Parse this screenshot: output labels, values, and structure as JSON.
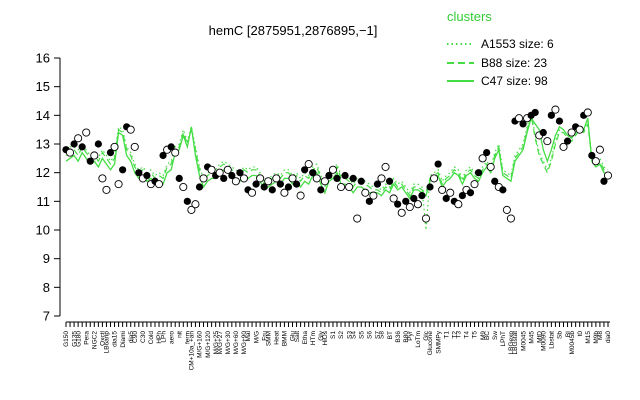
{
  "chart_data": {
    "type": "line",
    "title": "hemC [2875951,2876895,−1]",
    "xlabel": "",
    "ylabel": "",
    "ylim": [
      7,
      16
    ],
    "yticks": [
      7,
      8,
      9,
      10,
      11,
      12,
      13,
      14,
      15,
      16
    ],
    "n_conditions": 135,
    "x_tick_labels": [
      "G150",
      "G135",
      "G180",
      "Pera",
      "NGC2",
      "Oxctl",
      "LB6anp",
      "dia15",
      "Diami",
      "dia5",
      "C90",
      "C30",
      "Cold",
      "HPh",
      "LPh",
      "aero",
      "nit",
      "ferm",
      "CM+10a_+an",
      "M/G+160",
      "M/G+120",
      "M/G+25",
      "M/G+27",
      "M/G+30",
      "M/G+60",
      "M/G+90",
      "Mal",
      "M/G",
      "Fru",
      "SMM",
      "Heat",
      "BMM",
      "Glu",
      "Salt",
      "Etha",
      "HTm",
      "Gly",
      "HiOs",
      "S1",
      "S2",
      "S3",
      "S4",
      "S5",
      "S6",
      "S7",
      "S8",
      "BT",
      "B36",
      "B80",
      "Pyr",
      "LoTm",
      "Glc",
      "Glucone",
      "SMMPy",
      "T1",
      "T2",
      "T3",
      "T4",
      "T5",
      "M9",
      "BC",
      "Sw",
      "LPhT",
      "LBGexp",
      "LBGstat",
      "M0045",
      "M45",
      "MtD",
      "M0090",
      "Lbstat",
      "Sb",
      "BI",
      "M0045b",
      "t0",
      "M15",
      "M9b",
      "M8",
      "dia0"
    ],
    "clusters": [
      {
        "name": "A1553 size: 6",
        "style": "dotted"
      },
      {
        "name": "B88 size: 23",
        "style": "dashed"
      },
      {
        "name": "C47 size: 98",
        "style": "solid"
      }
    ],
    "series": [
      {
        "name": "C47 size: 98",
        "values": [
          12.4,
          12.5,
          12.6,
          12.4,
          12.7,
          12.5,
          12.3,
          12.4,
          12.2,
          12.5,
          12.3,
          12.1,
          12.3,
          13.4,
          13.3,
          12.6,
          12.4,
          12.0,
          11.8,
          11.9,
          11.7,
          11.8,
          11.6,
          11.7,
          11.6,
          12.0,
          12.1,
          12.7,
          12.8,
          13.3,
          12.9,
          13.6,
          12.6,
          11.9,
          11.5,
          11.7,
          11.8,
          11.8,
          12.0,
          12.1,
          12.0,
          11.9,
          11.8,
          11.7,
          11.9,
          11.8,
          11.9,
          11.9,
          11.7,
          11.4,
          11.5,
          11.6,
          11.7,
          11.6,
          11.8,
          11.8,
          11.6,
          11.7,
          11.5,
          11.7,
          11.6,
          11.9,
          12.0,
          11.6,
          11.3,
          11.7,
          11.8,
          12.0,
          11.6,
          11.6,
          11.5,
          11.3,
          11.5,
          11.5,
          11.4,
          11.3,
          11.3,
          11.3,
          11.2,
          11.4,
          11.3,
          11.6,
          11.4,
          11.5,
          11.3,
          11.1,
          11.4,
          11.4,
          11.3,
          11.2,
          11.7,
          11.8,
          11.9,
          11.5,
          11.7,
          11.8,
          12.0,
          11.9,
          11.6,
          11.9,
          12.0,
          11.8,
          11.7,
          12.0,
          12.2,
          12.0,
          12.5,
          12.8,
          11.9,
          11.8,
          11.7,
          12.4,
          12.6,
          12.8,
          13.4,
          13.9,
          13.7,
          13.5,
          12.8,
          12.4,
          12.8,
          13.3,
          13.6,
          13.5,
          13.3,
          13.2,
          13.4,
          13.6,
          13.5,
          13.9,
          12.4,
          12.2,
          12.3,
          12.0,
          11.9
        ]
      },
      {
        "name": "B88 size: 23",
        "values": [
          12.6,
          12.7,
          12.8,
          12.6,
          12.9,
          12.7,
          12.5,
          12.6,
          12.4,
          12.7,
          12.5,
          12.3,
          12.5,
          13.5,
          13.4,
          12.8,
          12.6,
          12.2,
          12.0,
          12.1,
          11.9,
          12.0,
          11.8,
          11.9,
          11.8,
          12.2,
          12.3,
          12.8,
          12.9,
          13.4,
          13.0,
          13.5,
          12.8,
          12.1,
          11.7,
          11.9,
          12.0,
          12.0,
          12.2,
          12.3,
          12.2,
          12.1,
          12.0,
          11.9,
          12.1,
          12.0,
          12.1,
          12.1,
          11.9,
          11.6,
          11.7,
          11.8,
          11.9,
          11.8,
          12.0,
          12.0,
          11.8,
          11.9,
          11.7,
          11.9,
          11.8,
          12.1,
          12.2,
          11.8,
          11.5,
          11.9,
          12.0,
          12.2,
          11.8,
          11.8,
          11.7,
          11.5,
          11.7,
          11.7,
          11.6,
          11.5,
          11.4,
          11.4,
          11.3,
          11.5,
          11.4,
          11.7,
          11.5,
          11.6,
          11.4,
          11.2,
          11.5,
          11.5,
          11.4,
          11.3,
          11.8,
          11.9,
          12.0,
          11.6,
          11.8,
          11.9,
          12.1,
          12.0,
          11.7,
          12.0,
          12.1,
          11.9,
          11.8,
          12.1,
          12.3,
          12.1,
          12.6,
          12.9,
          12.0,
          11.9,
          11.8,
          12.5,
          12.7,
          12.9,
          13.5,
          14.0,
          13.2,
          12.6,
          12.3,
          12.0,
          12.4,
          13.0,
          13.4,
          13.4,
          13.2,
          13.1,
          13.3,
          13.5,
          13.4,
          13.7,
          12.5,
          12.4,
          12.4,
          12.1,
          12.0
        ]
      },
      {
        "name": "A1553 size: 6",
        "values": [
          12.8,
          12.9,
          12.9,
          12.8,
          13.0,
          12.8,
          12.6,
          12.7,
          12.5,
          12.8,
          12.6,
          12.4,
          12.6,
          13.6,
          13.5,
          12.9,
          12.7,
          12.3,
          12.1,
          12.2,
          12.0,
          12.1,
          11.9,
          12.0,
          11.9,
          12.3,
          12.4,
          12.9,
          13.0,
          13.5,
          13.1,
          13.6,
          12.9,
          12.2,
          11.8,
          12.0,
          12.1,
          12.1,
          12.3,
          12.4,
          12.3,
          12.2,
          12.1,
          12.0,
          12.2,
          12.1,
          12.2,
          12.2,
          12.0,
          11.7,
          11.8,
          11.9,
          12.0,
          11.9,
          12.1,
          12.1,
          11.9,
          12.0,
          11.8,
          12.0,
          11.9,
          12.2,
          12.3,
          11.9,
          11.6,
          12.0,
          12.1,
          12.3,
          11.9,
          11.9,
          11.8,
          11.6,
          11.8,
          11.8,
          11.7,
          11.6,
          11.5,
          11.5,
          11.4,
          11.6,
          11.5,
          11.8,
          11.6,
          11.7,
          11.5,
          11.3,
          11.6,
          11.6,
          11.5,
          10.0,
          11.9,
          12.0,
          12.1,
          11.7,
          11.9,
          12.0,
          12.2,
          12.1,
          11.8,
          12.1,
          12.2,
          12.0,
          11.9,
          12.2,
          12.4,
          12.2,
          12.7,
          13.0,
          12.1,
          12.0,
          11.9,
          12.6,
          12.8,
          13.0,
          13.6,
          14.1,
          13.3,
          12.7,
          12.4,
          12.1,
          12.5,
          13.1,
          13.5,
          13.5,
          13.3,
          13.2,
          13.4,
          13.6,
          13.5,
          13.8,
          12.6,
          12.5,
          12.5,
          12.2,
          12.1
        ]
      }
    ],
    "points": [
      {
        "x": 1,
        "y": 12.8,
        "f": 0
      },
      {
        "x": 2,
        "y": 12.7,
        "f": 1
      },
      {
        "x": 3,
        "y": 13.0,
        "f": 0
      },
      {
        "x": 4,
        "y": 13.2,
        "f": 1
      },
      {
        "x": 5,
        "y": 12.9,
        "f": 0
      },
      {
        "x": 6,
        "y": 13.4,
        "f": 1
      },
      {
        "x": 7,
        "y": 12.4,
        "f": 0
      },
      {
        "x": 8,
        "y": 12.6,
        "f": 1
      },
      {
        "x": 9,
        "y": 13.0,
        "f": 0
      },
      {
        "x": 10,
        "y": 11.8,
        "f": 1
      },
      {
        "x": 11,
        "y": 11.4,
        "f": 1
      },
      {
        "x": 12,
        "y": 12.7,
        "f": 0
      },
      {
        "x": 13,
        "y": 12.9,
        "f": 1
      },
      {
        "x": 14,
        "y": 11.6,
        "f": 1
      },
      {
        "x": 15,
        "y": 12.1,
        "f": 0
      },
      {
        "x": 16,
        "y": 13.6,
        "f": 0
      },
      {
        "x": 17,
        "y": 13.5,
        "f": 1
      },
      {
        "x": 18,
        "y": 12.9,
        "f": 1
      },
      {
        "x": 19,
        "y": 12.0,
        "f": 0
      },
      {
        "x": 20,
        "y": 11.8,
        "f": 1
      },
      {
        "x": 21,
        "y": 11.9,
        "f": 0
      },
      {
        "x": 22,
        "y": 11.6,
        "f": 1
      },
      {
        "x": 23,
        "y": 11.7,
        "f": 0
      },
      {
        "x": 24,
        "y": 11.6,
        "f": 1
      },
      {
        "x": 25,
        "y": 12.6,
        "f": 0
      },
      {
        "x": 26,
        "y": 12.8,
        "f": 1
      },
      {
        "x": 27,
        "y": 12.9,
        "f": 0
      },
      {
        "x": 28,
        "y": 12.7,
        "f": 1
      },
      {
        "x": 29,
        "y": 11.8,
        "f": 0
      },
      {
        "x": 30,
        "y": 11.5,
        "f": 1
      },
      {
        "x": 31,
        "y": 11.0,
        "f": 0
      },
      {
        "x": 32,
        "y": 10.7,
        "f": 1
      },
      {
        "x": 33,
        "y": 10.9,
        "f": 1
      },
      {
        "x": 34,
        "y": 11.5,
        "f": 0
      },
      {
        "x": 35,
        "y": 11.8,
        "f": 1
      },
      {
        "x": 36,
        "y": 12.2,
        "f": 0
      },
      {
        "x": 37,
        "y": 12.1,
        "f": 1
      },
      {
        "x": 38,
        "y": 11.9,
        "f": 0
      },
      {
        "x": 39,
        "y": 12.0,
        "f": 1
      },
      {
        "x": 40,
        "y": 11.8,
        "f": 0
      },
      {
        "x": 41,
        "y": 12.1,
        "f": 1
      },
      {
        "x": 42,
        "y": 11.9,
        "f": 0
      },
      {
        "x": 43,
        "y": 11.7,
        "f": 1
      },
      {
        "x": 44,
        "y": 12.0,
        "f": 0
      },
      {
        "x": 45,
        "y": 11.8,
        "f": 1
      },
      {
        "x": 46,
        "y": 11.4,
        "f": 0
      },
      {
        "x": 47,
        "y": 11.3,
        "f": 1
      },
      {
        "x": 48,
        "y": 11.6,
        "f": 0
      },
      {
        "x": 49,
        "y": 11.8,
        "f": 1
      },
      {
        "x": 50,
        "y": 11.5,
        "f": 0
      },
      {
        "x": 51,
        "y": 11.7,
        "f": 1
      },
      {
        "x": 52,
        "y": 11.4,
        "f": 0
      },
      {
        "x": 53,
        "y": 11.8,
        "f": 1
      },
      {
        "x": 54,
        "y": 11.6,
        "f": 0
      },
      {
        "x": 55,
        "y": 11.3,
        "f": 1
      },
      {
        "x": 56,
        "y": 11.5,
        "f": 0
      },
      {
        "x": 57,
        "y": 11.8,
        "f": 1
      },
      {
        "x": 58,
        "y": 11.6,
        "f": 0
      },
      {
        "x": 59,
        "y": 11.2,
        "f": 1
      },
      {
        "x": 60,
        "y": 12.1,
        "f": 0
      },
      {
        "x": 61,
        "y": 12.3,
        "f": 1
      },
      {
        "x": 62,
        "y": 12.0,
        "f": 0
      },
      {
        "x": 63,
        "y": 11.8,
        "f": 1
      },
      {
        "x": 64,
        "y": 11.4,
        "f": 0
      },
      {
        "x": 65,
        "y": 11.7,
        "f": 1
      },
      {
        "x": 66,
        "y": 11.9,
        "f": 0
      },
      {
        "x": 67,
        "y": 12.1,
        "f": 1
      },
      {
        "x": 68,
        "y": 11.8,
        "f": 0
      },
      {
        "x": 69,
        "y": 11.5,
        "f": 1
      },
      {
        "x": 70,
        "y": 11.9,
        "f": 0
      },
      {
        "x": 71,
        "y": 11.5,
        "f": 1
      },
      {
        "x": 72,
        "y": 11.8,
        "f": 0
      },
      {
        "x": 73,
        "y": 10.4,
        "f": 1
      },
      {
        "x": 74,
        "y": 11.7,
        "f": 0
      },
      {
        "x": 75,
        "y": 11.3,
        "f": 1
      },
      {
        "x": 76,
        "y": 11.0,
        "f": 0
      },
      {
        "x": 77,
        "y": 11.2,
        "f": 1
      },
      {
        "x": 78,
        "y": 11.6,
        "f": 0
      },
      {
        "x": 79,
        "y": 11.8,
        "f": 1
      },
      {
        "x": 80,
        "y": 12.2,
        "f": 1
      },
      {
        "x": 81,
        "y": 11.7,
        "f": 0
      },
      {
        "x": 82,
        "y": 11.1,
        "f": 1
      },
      {
        "x": 83,
        "y": 10.9,
        "f": 0
      },
      {
        "x": 84,
        "y": 10.6,
        "f": 1
      },
      {
        "x": 85,
        "y": 11.0,
        "f": 0
      },
      {
        "x": 86,
        "y": 10.8,
        "f": 1
      },
      {
        "x": 87,
        "y": 11.1,
        "f": 0
      },
      {
        "x": 88,
        "y": 10.9,
        "f": 1
      },
      {
        "x": 89,
        "y": 11.2,
        "f": 0
      },
      {
        "x": 90,
        "y": 10.4,
        "f": 1
      },
      {
        "x": 91,
        "y": 11.5,
        "f": 0
      },
      {
        "x": 92,
        "y": 11.8,
        "f": 1
      },
      {
        "x": 93,
        "y": 12.3,
        "f": 0
      },
      {
        "x": 94,
        "y": 11.4,
        "f": 1
      },
      {
        "x": 95,
        "y": 11.1,
        "f": 0
      },
      {
        "x": 96,
        "y": 11.3,
        "f": 1
      },
      {
        "x": 97,
        "y": 11.0,
        "f": 0
      },
      {
        "x": 98,
        "y": 10.9,
        "f": 1
      },
      {
        "x": 99,
        "y": 11.2,
        "f": 0
      },
      {
        "x": 100,
        "y": 11.4,
        "f": 1
      },
      {
        "x": 101,
        "y": 11.3,
        "f": 0
      },
      {
        "x": 102,
        "y": 11.6,
        "f": 1
      },
      {
        "x": 103,
        "y": 12.0,
        "f": 0
      },
      {
        "x": 104,
        "y": 12.5,
        "f": 1
      },
      {
        "x": 105,
        "y": 12.7,
        "f": 0
      },
      {
        "x": 106,
        "y": 12.2,
        "f": 1
      },
      {
        "x": 107,
        "y": 11.7,
        "f": 0
      },
      {
        "x": 108,
        "y": 11.5,
        "f": 1
      },
      {
        "x": 109,
        "y": 11.4,
        "f": 0
      },
      {
        "x": 110,
        "y": 10.7,
        "f": 1
      },
      {
        "x": 111,
        "y": 10.4,
        "f": 1
      },
      {
        "x": 112,
        "y": 13.8,
        "f": 0
      },
      {
        "x": 113,
        "y": 13.9,
        "f": 1
      },
      {
        "x": 114,
        "y": 13.7,
        "f": 0
      },
      {
        "x": 115,
        "y": 13.9,
        "f": 1
      },
      {
        "x": 116,
        "y": 14.0,
        "f": 0
      },
      {
        "x": 117,
        "y": 14.1,
        "f": 0
      },
      {
        "x": 118,
        "y": 13.3,
        "f": 1
      },
      {
        "x": 119,
        "y": 13.4,
        "f": 0
      },
      {
        "x": 120,
        "y": 13.1,
        "f": 1
      },
      {
        "x": 121,
        "y": 14.0,
        "f": 0
      },
      {
        "x": 122,
        "y": 14.2,
        "f": 1
      },
      {
        "x": 123,
        "y": 13.8,
        "f": 0
      },
      {
        "x": 124,
        "y": 12.9,
        "f": 1
      },
      {
        "x": 125,
        "y": 13.1,
        "f": 0
      },
      {
        "x": 126,
        "y": 13.4,
        "f": 1
      },
      {
        "x": 127,
        "y": 13.6,
        "f": 0
      },
      {
        "x": 128,
        "y": 13.5,
        "f": 1
      },
      {
        "x": 129,
        "y": 14.0,
        "f": 0
      },
      {
        "x": 130,
        "y": 14.1,
        "f": 1
      },
      {
        "x": 131,
        "y": 12.6,
        "f": 0
      },
      {
        "x": 132,
        "y": 12.4,
        "f": 1
      },
      {
        "x": 133,
        "y": 12.8,
        "f": 1
      },
      {
        "x": 134,
        "y": 11.7,
        "f": 0
      },
      {
        "x": 135,
        "y": 11.9,
        "f": 1
      }
    ],
    "legend": {
      "title": "clusters",
      "placement": "top-right"
    },
    "grid": false,
    "colors": {
      "line": "#44dd44",
      "legend_title": "#33cc33",
      "axes": "#000000"
    }
  }
}
